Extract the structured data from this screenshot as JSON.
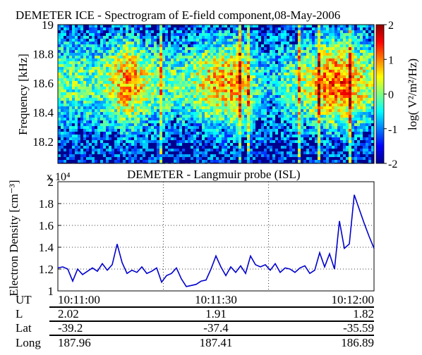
{
  "spectrogram": {
    "title": "DEMETER ICE - Spectrogram of E-field component,08-May-2006",
    "ylabel": "Frequency [kHz]",
    "yticks": [
      "18.2",
      "18.4",
      "18.6",
      "18.8",
      "19"
    ],
    "colorbar_label": "log(  V²/m²/Hz)",
    "colorbar_ticks": [
      "-2",
      "-1",
      "0",
      "1",
      "2"
    ],
    "colors": {
      "low": "#00008f",
      "mid": "#00ffff",
      "mid2": "#ffff00",
      "high": "#8f0000"
    }
  },
  "chart_data": [
    {
      "type": "heatmap",
      "title": "DEMETER ICE - Spectrogram of E-field component,08-May-2006",
      "ylabel": "Frequency [kHz]",
      "ylim": [
        18.05,
        19.0
      ],
      "zlim": [
        -2,
        2
      ],
      "zlabel": "log(  V²/m²/Hz)",
      "description_values": {
        "band_center_khz": 18.6,
        "note_levels": [
          -2,
          -1,
          0,
          1,
          2
        ]
      }
    },
    {
      "type": "line",
      "title": "DEMETER - Langmuir probe (ISL)",
      "ylabel": "Electron Density [cm⁻³]",
      "y_multiplier": "x 10⁴",
      "ylim": [
        1.0,
        2.0
      ],
      "yticks": [
        1,
        1.2,
        1.4,
        1.6,
        1.8,
        2
      ],
      "xticks": [
        "10:11:00",
        "10:11:30",
        "10:12:00"
      ],
      "grid": true,
      "series": [
        {
          "color": "#0000cc",
          "values": [
            1.21,
            1.22,
            1.2,
            1.09,
            1.2,
            1.15,
            1.18,
            1.21,
            1.18,
            1.25,
            1.19,
            1.24,
            1.43,
            1.26,
            1.16,
            1.19,
            1.17,
            1.22,
            1.16,
            1.18,
            1.21,
            1.08,
            1.14,
            1.16,
            1.21,
            1.11,
            1.04,
            1.05,
            1.06,
            1.09,
            1.1,
            1.2,
            1.32,
            1.22,
            1.14,
            1.22,
            1.17,
            1.23,
            1.16,
            1.32,
            1.24,
            1.22,
            1.24,
            1.19,
            1.25,
            1.17,
            1.21,
            1.2,
            1.17,
            1.21,
            1.23,
            1.16,
            1.19,
            1.35,
            1.22,
            1.34,
            1.2,
            1.64,
            1.39,
            1.43,
            1.88,
            1.75,
            1.62,
            1.5,
            1.39
          ]
        }
      ]
    }
  ],
  "table": {
    "rows": [
      {
        "label": "UT",
        "values": [
          "10:11:00",
          "10:11:30",
          "10:12:00"
        ]
      },
      {
        "label": "L",
        "values": [
          "2.02",
          "1.91",
          "1.82"
        ]
      },
      {
        "label": "Lat",
        "values": [
          "-39.2",
          "-37.4",
          "-35.59"
        ]
      },
      {
        "label": "Long",
        "values": [
          "187.96",
          "187.41",
          "186.89"
        ]
      }
    ]
  }
}
